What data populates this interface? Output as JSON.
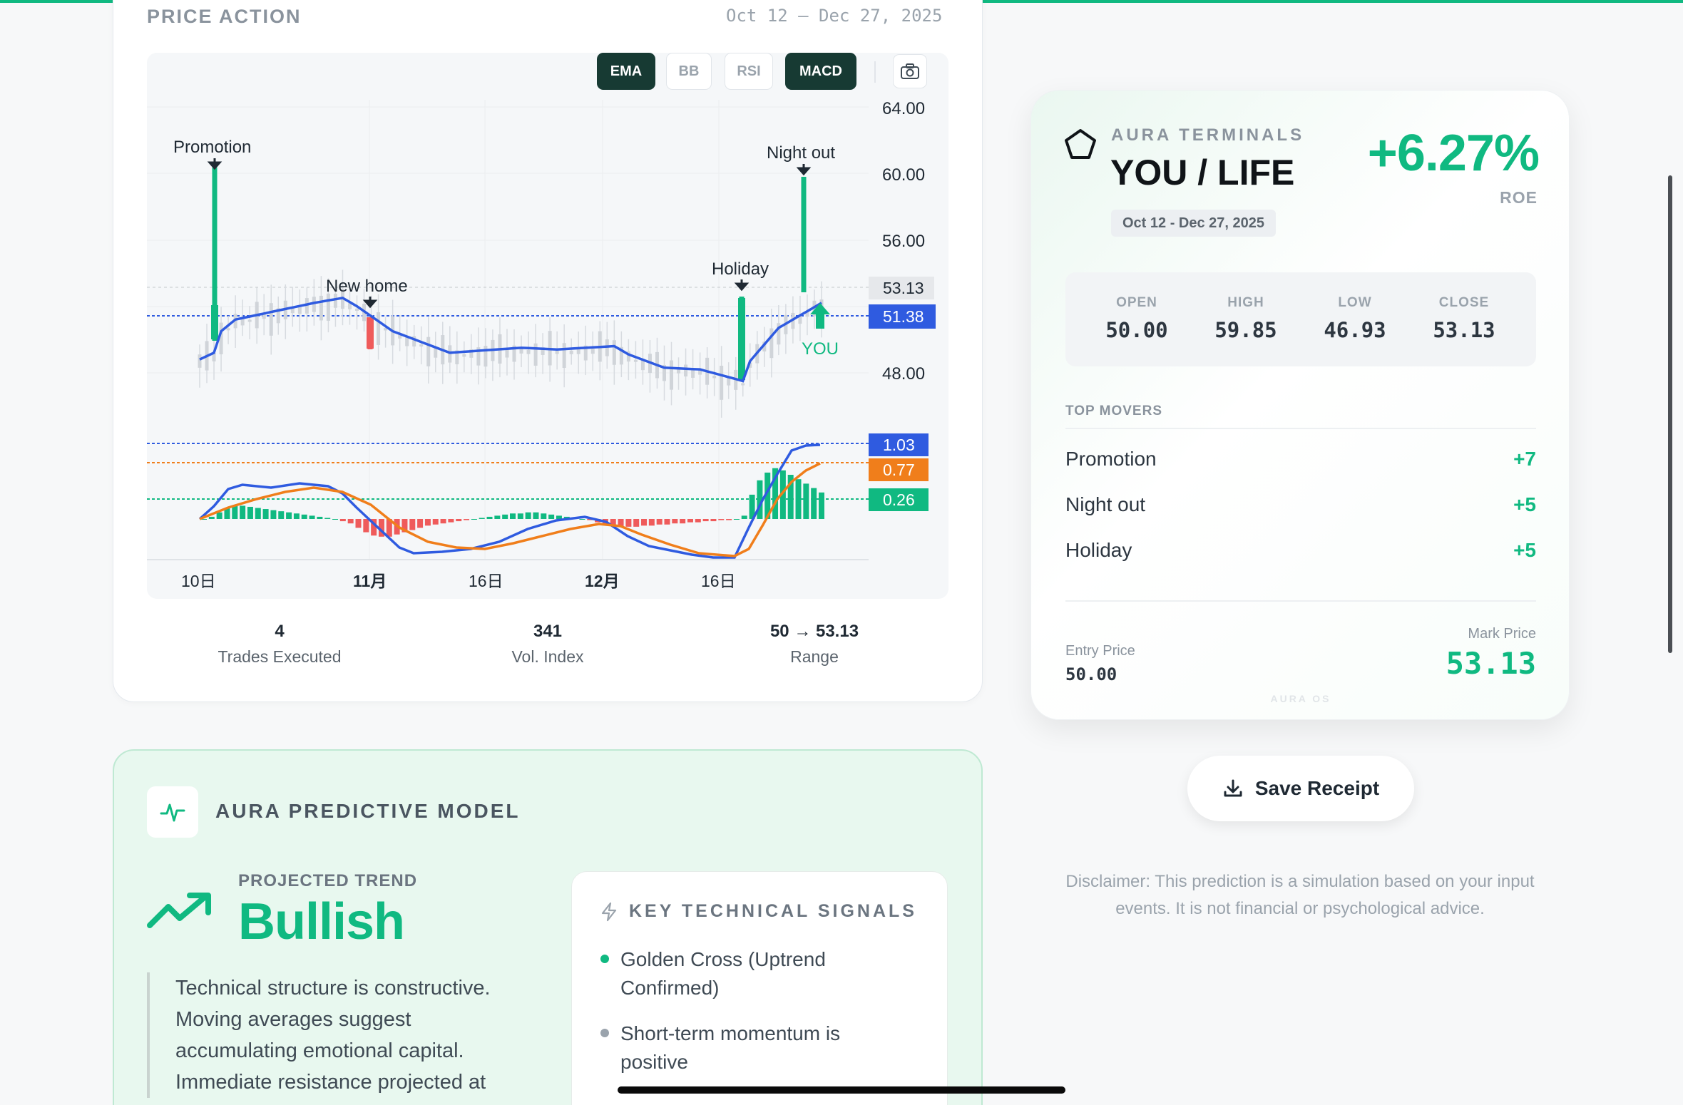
{
  "price_action": {
    "title": "PRICE ACTION",
    "date_range": "Oct 12 – Dec 27, 2025",
    "indicators": [
      {
        "label": "EMA",
        "active": true
      },
      {
        "label": "BB",
        "active": false
      },
      {
        "label": "RSI",
        "active": false
      },
      {
        "label": "MACD",
        "active": true
      }
    ],
    "camera_icon": "camera-icon",
    "price_ticks": [
      "64.00",
      "60.00",
      "56.00",
      "48.00"
    ],
    "current_price_tag": "53.13",
    "ema_tag": "51.38",
    "macd_tags": [
      "1.03",
      "0.77",
      "0.26"
    ],
    "x_ticks": [
      "10日",
      "11月",
      "16日",
      "12月",
      "16日"
    ],
    "events": [
      {
        "label": "Promotion",
        "delta": 7
      },
      {
        "label": "New home",
        "delta": -3
      },
      {
        "label": "Holiday",
        "delta": 5
      },
      {
        "label": "Night out",
        "delta": 5
      }
    ],
    "you_label": "YOU",
    "stats": [
      {
        "value": "4",
        "label": "Trades Executed"
      },
      {
        "value": "341",
        "label": "Vol. Index"
      },
      {
        "value": "50 → 53.13",
        "label": "Range"
      }
    ]
  },
  "predictive": {
    "title": "AURA PREDICTIVE MODEL",
    "projected_label": "PROJECTED TREND",
    "projected_value": "Bullish",
    "quote": "Technical structure is constructive. Moving averages suggest accumulating emotional capital. Immediate resistance projected at",
    "signals_title": "KEY TECHNICAL SIGNALS",
    "signals": [
      {
        "text": "Golden Cross (Uptrend Confirmed)",
        "color": "#10b981"
      },
      {
        "text": "Short-term momentum is positive",
        "color": "#9aa3ac"
      }
    ]
  },
  "receipt": {
    "brand": "AURA TERMINALS",
    "title": "YOU / LIFE",
    "date": "Oct 12 - Dec 27, 2025",
    "roe_value": "+6.27%",
    "roe_label": "ROE",
    "ohlc": [
      {
        "key": "OPEN",
        "value": "50.00"
      },
      {
        "key": "HIGH",
        "value": "59.85"
      },
      {
        "key": "LOW",
        "value": "46.93"
      },
      {
        "key": "CLOSE",
        "value": "53.13"
      }
    ],
    "movers_label": "TOP MOVERS",
    "movers": [
      {
        "name": "Promotion",
        "delta": "+7"
      },
      {
        "name": "Night out",
        "delta": "+5"
      },
      {
        "name": "Holiday",
        "delta": "+5"
      }
    ],
    "entry_label": "Entry Price",
    "entry_value": "50.00",
    "mark_label": "Mark Price",
    "mark_value": "53.13",
    "footer": "AURA OS"
  },
  "save_button": "Save Receipt",
  "disclaimer": "Disclaimer: This prediction is a simulation based on your input events. It is not financial or psychological advice.",
  "colors": {
    "accent": "#10b981",
    "dark": "#173a33",
    "blue": "#2f5be0",
    "orange": "#f07e1b",
    "red": "#ef5b5b"
  }
}
